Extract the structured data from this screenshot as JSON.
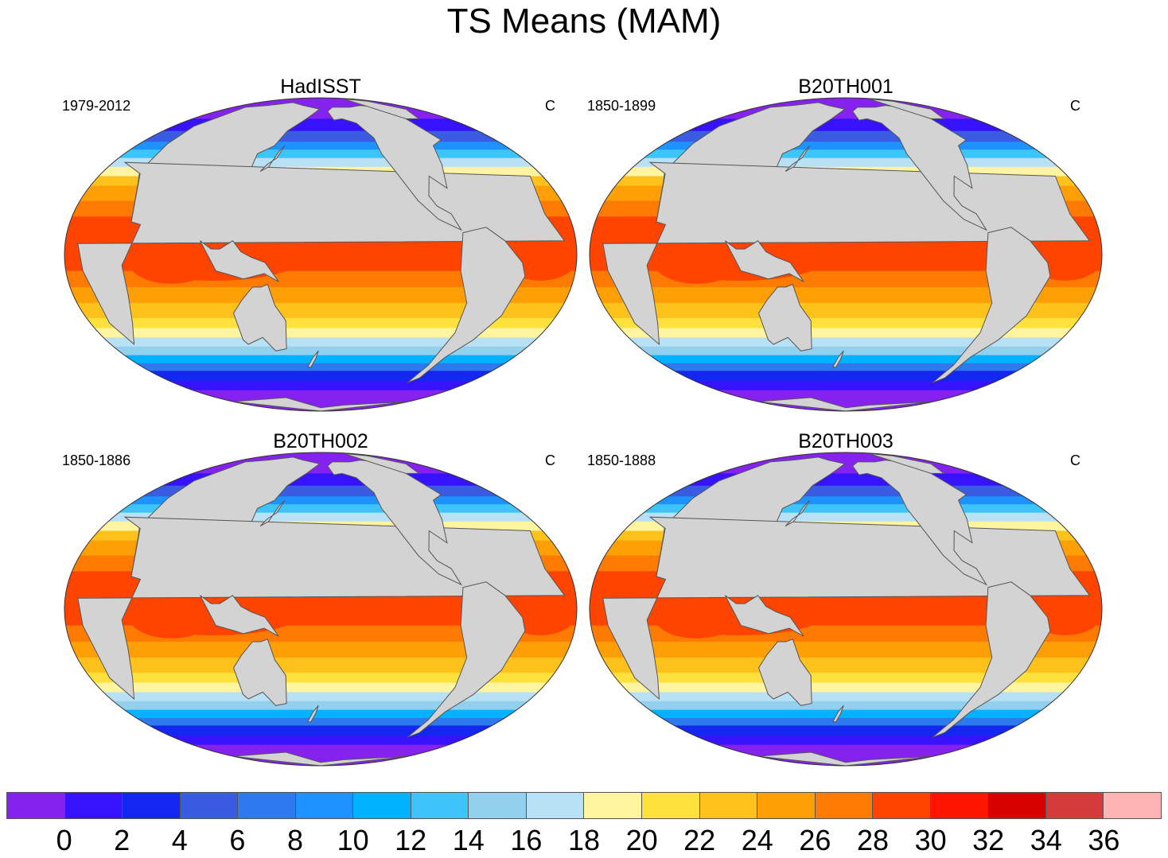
{
  "title": "TS Means (MAM)",
  "panels": [
    {
      "title": "HadISST",
      "period": "1979-2012",
      "units": "C"
    },
    {
      "title": "B20TH001",
      "period": "1850-1899",
      "units": "C"
    },
    {
      "title": "B20TH002",
      "period": "1850-1886",
      "units": "C"
    },
    {
      "title": "B20TH003",
      "period": "1850-1888",
      "units": "C"
    }
  ],
  "colorbar": {
    "colors": [
      "#8522f0",
      "#3612ff",
      "#1427f0",
      "#3a5ce2",
      "#2f79ee",
      "#1e93ff",
      "#00b2ff",
      "#3dc5fa",
      "#92d0ee",
      "#b9e1f5",
      "#fff5a0",
      "#ffe13d",
      "#ffc21b",
      "#ff9e05",
      "#ff7a00",
      "#ff4400",
      "#ff1400",
      "#d90000",
      "#d63b3b",
      "#ffb4b4"
    ],
    "labels": [
      "0",
      "2",
      "4",
      "6",
      "8",
      "10",
      "12",
      "14",
      "16",
      "18",
      "20",
      "22",
      "24",
      "26",
      "28",
      "30",
      "32",
      "34",
      "36"
    ]
  },
  "land_color": "#d3d3d3"
}
